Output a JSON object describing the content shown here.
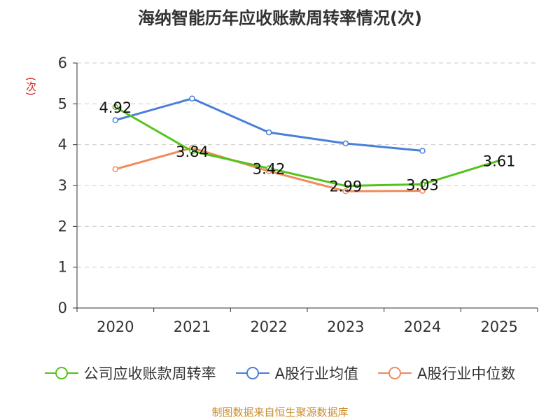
{
  "title": "海纳智能历年应收账款周转率情况(次)",
  "source": "制图数据来自恒生聚源数据库",
  "colors": {
    "company": "#52c41a",
    "industry_avg": "#4a7fd8",
    "industry_median": "#f08b5a",
    "grid": "#cccccc",
    "axis": "#333333",
    "unit": "#d9211c"
  },
  "chart_data": {
    "type": "line",
    "title": "海纳智能历年应收账款周转率情况(次)",
    "ylabel": "(次)",
    "xlabel": "",
    "categories": [
      "2020",
      "2021",
      "2022",
      "2023",
      "2024",
      "2025"
    ],
    "ylim": [
      0,
      6
    ],
    "yticks": [
      "0",
      "1",
      "2",
      "3",
      "4",
      "5",
      "6"
    ],
    "grid": "horizontal dashed",
    "legend_position": "bottom",
    "series": [
      {
        "name": "公司应收账款周转率",
        "key": "company",
        "values": [
          4.92,
          3.84,
          3.42,
          2.99,
          3.03,
          3.61
        ],
        "labels": [
          "4.92",
          "3.84",
          "3.42",
          "2.99",
          "3.03",
          "3.61"
        ],
        "show_markers": [
          true,
          true,
          true,
          false,
          true,
          false
        ]
      },
      {
        "name": "A股行业均值",
        "key": "industry_avg",
        "values": [
          4.6,
          5.13,
          4.3,
          4.03,
          3.85,
          null
        ]
      },
      {
        "name": "A股行业中位数",
        "key": "industry_median",
        "values": [
          3.4,
          3.92,
          3.35,
          2.86,
          2.87,
          null
        ]
      }
    ]
  }
}
